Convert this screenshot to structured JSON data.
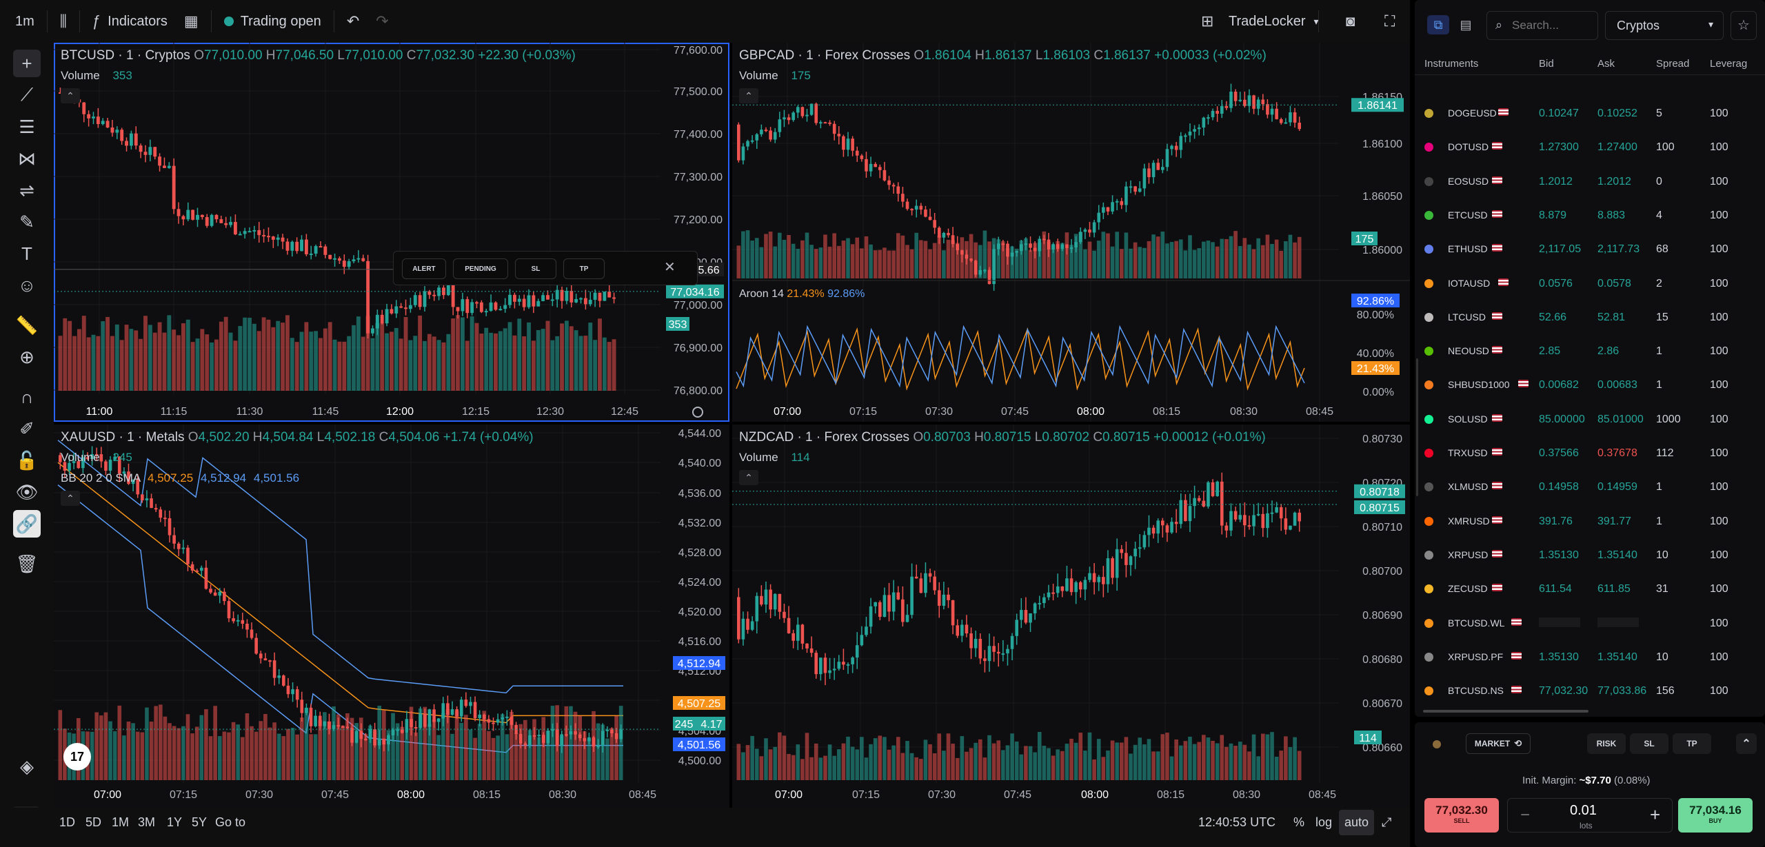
{
  "topbar": {
    "timeframe": "1m",
    "indicators": "Indicators",
    "trading_status": "Trading open",
    "platform": "TradeLocker"
  },
  "bottombar": {
    "ranges": [
      "1D",
      "5D",
      "1M",
      "3M",
      "1Y",
      "5Y"
    ],
    "goto": "Go to",
    "clock": "12:40:53 UTC",
    "pct": "%",
    "log": "log",
    "auto": "auto"
  },
  "pane1": {
    "symbol": "BTCUSD · 1 · Cryptos",
    "o_k": "O",
    "o": "77,010.00",
    "h_k": "H",
    "h": "77,046.50",
    "l_k": "L",
    "l": "77,010.00",
    "c_k": "C",
    "c": "77,032.30",
    "chg": "+22.30 (+0.03%)",
    "volume_label": "Volume",
    "volume": "353",
    "price_ticks": [
      "77,600.00",
      "77,500.00",
      "77,400.00",
      "77,300.00",
      "77,200.00",
      "77,100.00",
      "77,000.00",
      "76,900.00",
      "76,800.00"
    ],
    "time_ticks": [
      "11:00",
      "11:15",
      "11:30",
      "11:45",
      "12:00",
      "12:15",
      "12:30",
      "12:45"
    ],
    "last_tag": "77,034.16",
    "cross_tag": "77,085.66",
    "vol_tag": "353",
    "popup": {
      "alert": "ALERT",
      "pending": "PENDING",
      "sl": "SL",
      "tp": "TP"
    }
  },
  "pane2": {
    "symbol": "GBPCAD · 1 · Forex Crosses",
    "o_k": "O",
    "o": "1.86104",
    "h_k": "H",
    "h": "1.86137",
    "l_k": "L",
    "l": "1.86103",
    "c_k": "C",
    "c": "1.86137",
    "chg": "+0.00033 (+0.02%)",
    "volume_label": "Volume",
    "volume": "175",
    "price_ticks": [
      "1.86150",
      "1.86100",
      "1.86050",
      "1.86000"
    ],
    "last_tag": "1.86141",
    "vol_tag": "175",
    "aroon": {
      "label": "Aroon 14",
      "up": "21.43%",
      "down": "92.86%",
      "ticks": [
        "80.00%",
        "40.00%",
        "0.00%"
      ],
      "up_tag": "21.43%",
      "down_tag": "92.86%"
    },
    "time_ticks": [
      "07:00",
      "07:15",
      "07:30",
      "07:45",
      "08:00",
      "08:15",
      "08:30",
      "08:45"
    ]
  },
  "pane3": {
    "symbol": "XAUUSD · 1 · Metals",
    "o_k": "O",
    "o": "4,502.20",
    "h_k": "H",
    "h": "4,504.84",
    "l_k": "L",
    "l": "4,502.18",
    "c_k": "C",
    "c": "4,504.06",
    "chg": "+1.74 (+0.04%)",
    "volume_label": "Volume",
    "volume": "245",
    "bb_label": "BB 20 2 0 SMA",
    "bb_mid": "4,507.25",
    "bb_up": "4,512.94",
    "bb_low": "4,501.56",
    "price_ticks": [
      "4,544.00",
      "4,540.00",
      "4,536.00",
      "4,532.00",
      "4,528.00",
      "4,524.00",
      "4,520.00",
      "4,516.00",
      "4,512.00",
      "4,508.00",
      "4,504.00",
      "4,500.00"
    ],
    "tag_up": "4,512.94",
    "tag_mid": "4,507.25",
    "tag_last": "245",
    "tag_last2": "4.17",
    "tag_low": "4,501.56",
    "time_ticks": [
      "07:00",
      "07:15",
      "07:30",
      "07:45",
      "08:00",
      "08:15",
      "08:30",
      "08:45"
    ]
  },
  "pane4": {
    "symbol": "NZDCAD · 1 · Forex Crosses",
    "o_k": "O",
    "o": "0.80703",
    "h_k": "H",
    "h": "0.80715",
    "l_k": "L",
    "l": "0.80702",
    "c_k": "C",
    "c": "0.80715",
    "chg": "+0.00012 (+0.01%)",
    "volume_label": "Volume",
    "volume": "114",
    "price_ticks": [
      "0.80730",
      "0.80720",
      "0.80710",
      "0.80700",
      "0.80690",
      "0.80680",
      "0.80670",
      "0.80660"
    ],
    "tag_high": "0.80718",
    "tag_last": "0.80715",
    "vol_tag": "114",
    "time_ticks": [
      "07:00",
      "07:15",
      "07:30",
      "07:45",
      "08:00",
      "08:15",
      "08:30",
      "08:45"
    ]
  },
  "panel": {
    "search_placeholder": "Search...",
    "category": "Cryptos",
    "headers": [
      "Instruments",
      "Bid",
      "Ask",
      "Spread",
      "Leverag"
    ],
    "rows": [
      {
        "name": "DOGEUSD",
        "bid": "0.10247",
        "ask": "0.10252",
        "spread": "5",
        "lev": "100",
        "color": "#c2a633"
      },
      {
        "name": "DOTUSD",
        "bid": "1.27300",
        "ask": "1.27400",
        "spread": "100",
        "lev": "100",
        "color": "#e6007a"
      },
      {
        "name": "EOSUSD",
        "bid": "1.2012",
        "ask": "1.2012",
        "spread": "0",
        "lev": "100",
        "color": "#444444"
      },
      {
        "name": "ETCUSD",
        "bid": "8.879",
        "ask": "8.883",
        "spread": "4",
        "lev": "100",
        "color": "#3ab83a"
      },
      {
        "name": "ETHUSD",
        "bid": "2,117.05",
        "ask": "2,117.73",
        "spread": "68",
        "lev": "100",
        "color": "#627eea"
      },
      {
        "name": "IOTAUSD",
        "bid": "0.0576",
        "ask": "0.0578",
        "spread": "2",
        "lev": "100",
        "color": "#f7931a"
      },
      {
        "name": "LTCUSD",
        "bid": "52.66",
        "ask": "52.81",
        "spread": "15",
        "lev": "100",
        "color": "#bfbbbb"
      },
      {
        "name": "NEOUSD",
        "bid": "2.85",
        "ask": "2.86",
        "spread": "1",
        "lev": "100",
        "color": "#58bf00"
      },
      {
        "name": "SHBUSD1000",
        "bid": "0.00682",
        "ask": "0.00683",
        "spread": "1",
        "lev": "100",
        "color": "#f47b20"
      },
      {
        "name": "SOLUSD",
        "bid": "85.00000",
        "ask": "85.01000",
        "spread": "1000",
        "lev": "100",
        "color": "#14f195"
      },
      {
        "name": "TRXUSD",
        "bid": "0.37566",
        "ask": "0.37678",
        "spread": "112",
        "lev": "100",
        "color": "#ef0027"
      },
      {
        "name": "XLMUSD",
        "bid": "0.14958",
        "ask": "0.14959",
        "spread": "1",
        "lev": "100",
        "color": "#555555"
      },
      {
        "name": "XMRUSD",
        "bid": "391.76",
        "ask": "391.77",
        "spread": "1",
        "lev": "100",
        "color": "#ff6600"
      },
      {
        "name": "XRPUSD",
        "bid": "1.35130",
        "ask": "1.35140",
        "spread": "10",
        "lev": "100",
        "color": "#888888"
      },
      {
        "name": "ZECUSD",
        "bid": "611.54",
        "ask": "611.85",
        "spread": "31",
        "lev": "100",
        "color": "#f4b728"
      },
      {
        "name": "BTCUSD.WL",
        "bid": "",
        "ask": "",
        "spread": "",
        "lev": "100",
        "color": "#f7931a"
      },
      {
        "name": "XRPUSD.PF",
        "bid": "1.35130",
        "ask": "1.35140",
        "spread": "10",
        "lev": "100",
        "color": "#888888"
      },
      {
        "name": "BTCUSD.NS",
        "bid": "77,032.30",
        "ask": "77,033.86",
        "spread": "156",
        "lev": "100",
        "color": "#f7931a"
      }
    ]
  },
  "order": {
    "market": "MARKET",
    "risk": "RISK",
    "sl": "SL",
    "tp": "TP",
    "margin_label": "Init. Margin:",
    "margin_value": "~$7.70",
    "margin_pct": "(0.08%)",
    "sell_price": "77,032.30",
    "sell": "SELL",
    "buy_price": "77,034.16",
    "buy": "BUY",
    "lots_value": "0.01",
    "lots": "lots"
  },
  "colors": {
    "up": "#26a69a",
    "down": "#ef5350",
    "accent": "#2962ff",
    "orange": "#f7931a",
    "blue": "#5b9cf6"
  }
}
